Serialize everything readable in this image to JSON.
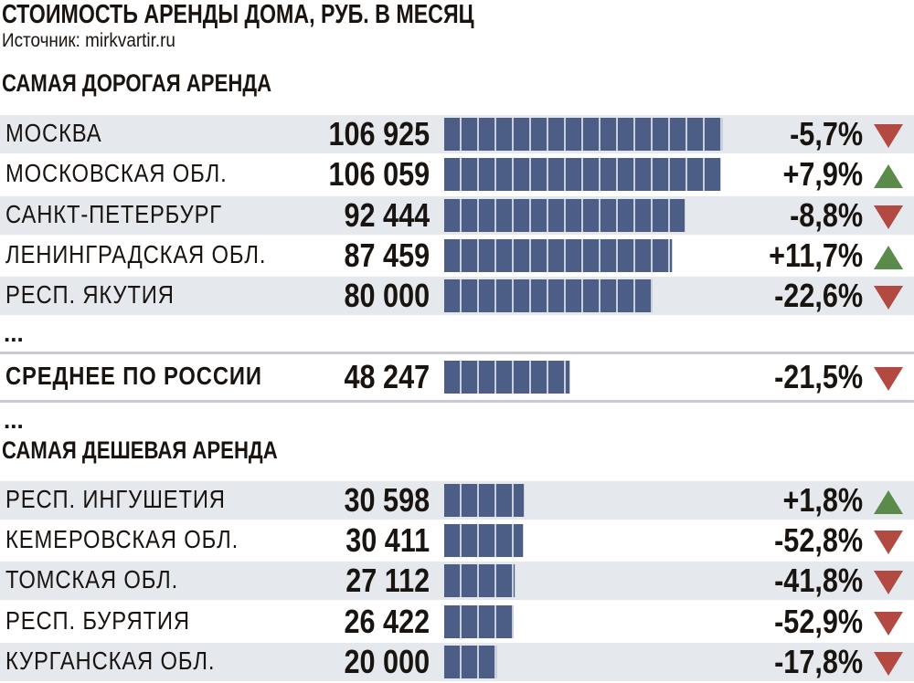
{
  "title": "СТОИМОСТЬ АРЕНДЫ ДОМА, РУБ. В МЕСЯЦ",
  "source": "Источник: mirkvartir.ru",
  "ellipsis": "...",
  "colors": {
    "bar": "#4d5e86",
    "row_shade": "#e5e9ee",
    "down": "#b34a42",
    "up": "#5b8b4a"
  },
  "chart_data": {
    "type": "bar",
    "title": "СТОИМОСТЬ АРЕНДЫ ДОМА, РУБ. В МЕСЯЦ",
    "orientation": "horizontal",
    "groups": [
      {
        "heading": "САМАЯ ДОРОГАЯ АРЕНДА",
        "rows": [
          {
            "label": "МОСКВА",
            "value": 106925,
            "value_text": "106 925",
            "change": "-5,7%",
            "direction": "down"
          },
          {
            "label": "МОСКОВСКАЯ ОБЛ.",
            "value": 106059,
            "value_text": "106 059",
            "change": "+7,9%",
            "direction": "up"
          },
          {
            "label": "САНКТ-ПЕТЕРБУРГ",
            "value": 92444,
            "value_text": "92 444",
            "change": "-8,8%",
            "direction": "down"
          },
          {
            "label": "ЛЕНИНГРАДСКАЯ ОБЛ.",
            "value": 87459,
            "value_text": "87 459",
            "change": "+11,7%",
            "direction": "up"
          },
          {
            "label": "РЕСП. ЯКУТИЯ",
            "value": 80000,
            "value_text": "80 000",
            "change": "-22,6%",
            "direction": "down"
          }
        ]
      },
      {
        "heading": "",
        "rows": [
          {
            "label": "СРЕДНЕЕ ПО РОССИИ",
            "value": 48247,
            "value_text": "48 247",
            "change": "-21,5%",
            "direction": "down"
          }
        ]
      },
      {
        "heading": "САМАЯ ДЕШЕВАЯ АРЕНДА",
        "rows": [
          {
            "label": "РЕСП. ИНГУШЕТИЯ",
            "value": 30598,
            "value_text": "30 598",
            "change": "+1,8%",
            "direction": "up"
          },
          {
            "label": "КЕМЕРОВСКАЯ ОБЛ.",
            "value": 30411,
            "value_text": "30 411",
            "change": "-52,8%",
            "direction": "down"
          },
          {
            "label": "ТОМСКАЯ ОБЛ.",
            "value": 27112,
            "value_text": "27 112",
            "change": "-41,8%",
            "direction": "down"
          },
          {
            "label": "РЕСП. БУРЯТИЯ",
            "value": 26422,
            "value_text": "26 422",
            "change": "-52,9%",
            "direction": "down"
          },
          {
            "label": "КУРГАНСКАЯ ОБЛ.",
            "value": 20000,
            "value_text": "20 000",
            "change": "-17,8%",
            "direction": "down"
          }
        ]
      }
    ]
  }
}
